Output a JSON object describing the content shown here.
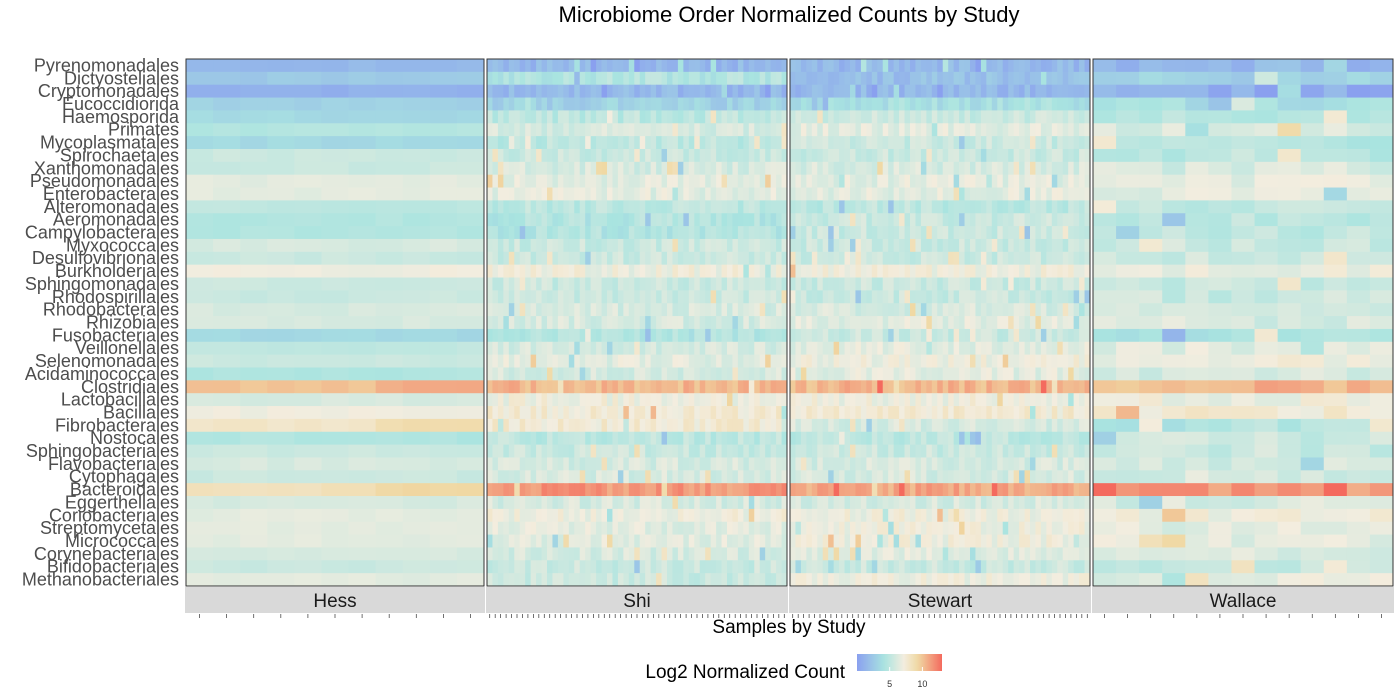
{
  "chart_data": {
    "type": "heatmap",
    "title": "Microbiome Order Normalized Counts by Study",
    "xlabel": "Samples by Study",
    "ylabel": "",
    "legend": {
      "title": "Log2 Normalized Count",
      "ticks": [
        5,
        10
      ],
      "range": [
        0,
        13
      ],
      "colors": [
        "#8aa0ef",
        "#a9e4e0",
        "#f3eddf",
        "#f0d8a2",
        "#f46a5e"
      ],
      "placement": "bottom"
    },
    "rows": [
      "Pyrenomonadales",
      "Dictyosteliales",
      "Cryptomonadales",
      "Eucoccidiorida",
      "Haemosporida",
      "Primates",
      "Mycoplasmatales",
      "Spirochaetales",
      "Xanthomonadales",
      "Pseudomonadales",
      "Enterobacterales",
      "Alteromonadales",
      "Aeromonadales",
      "Campylobacterales",
      "Myxococcales",
      "Desulfovibrionales",
      "Burkholderiales",
      "Sphingomonadales",
      "Rhodospirillales",
      "Rhodobacterales",
      "Rhizobiales",
      "Fusobacteriales",
      "Veillonellales",
      "Selenomonadales",
      "Acidaminococcales",
      "Clostridiales",
      "Lactobacillales",
      "Bacillales",
      "Fibrobacterales",
      "Nostocales",
      "Sphingobacteriales",
      "Flavobacteriales",
      "Cytophagales",
      "Bacteroidales",
      "Eggerthellales",
      "Coriobacteriales",
      "Streptomycetales",
      "Micrococcales",
      "Corynebacteriales",
      "Bifidobacteriales",
      "Methanobacteriales"
    ],
    "studies": [
      {
        "name": "Hess",
        "n_samples": 11
      },
      {
        "name": "Shi",
        "n_samples": 55
      },
      {
        "name": "Stewart",
        "n_samples": 55
      },
      {
        "name": "Wallace",
        "n_samples": 13
      }
    ],
    "typical_values": {
      "Hess": [
        1.5,
        2.5,
        1,
        3,
        3.5,
        4.5,
        3.5,
        5.5,
        5.5,
        6.5,
        6.5,
        5,
        4.5,
        4.5,
        6,
        5.5,
        7,
        5.5,
        5.5,
        6,
        6,
        3.5,
        5,
        5.5,
        4.5,
        10,
        6,
        7,
        8,
        4.5,
        5.5,
        6,
        5.5,
        8.5,
        6,
        6.5,
        6.5,
        6.5,
        6,
        5.5,
        6.5
      ],
      "Shi": [
        1.5,
        4.5,
        1.5,
        3,
        5,
        6,
        5,
        5.5,
        6,
        6.5,
        6.5,
        5,
        4.5,
        4.5,
        5.5,
        5.5,
        7,
        5.5,
        5.5,
        6,
        6,
        4.5,
        6,
        6.5,
        6,
        10.5,
        7,
        7.5,
        7.5,
        5,
        5.5,
        6,
        6,
        11.5,
        6,
        7,
        6.5,
        6.5,
        6,
        5.5,
        5.5
      ],
      "Stewart": [
        1.5,
        2,
        1.5,
        4,
        5.5,
        6.5,
        5.5,
        5.5,
        6,
        6.5,
        6.5,
        5,
        5.5,
        5.5,
        5.5,
        5.5,
        7,
        5.5,
        5.5,
        6,
        6.5,
        5.5,
        6.5,
        7,
        6.5,
        10.5,
        7,
        7.5,
        6,
        5,
        5.5,
        6,
        6,
        11,
        6,
        7,
        7,
        7,
        6.5,
        5.5,
        7
      ],
      "Wallace": [
        1.5,
        3,
        1,
        4,
        4.5,
        6,
        4.5,
        5,
        6,
        6.5,
        6.5,
        5,
        5,
        5,
        5.5,
        5.5,
        7,
        5.5,
        5.5,
        6,
        6,
        4.5,
        6.5,
        7,
        6,
        10.5,
        7,
        7.5,
        4.5,
        5.5,
        5.5,
        6,
        6,
        11.5,
        6,
        7,
        6.5,
        6.5,
        6,
        5.5,
        6.5
      ]
    }
  }
}
